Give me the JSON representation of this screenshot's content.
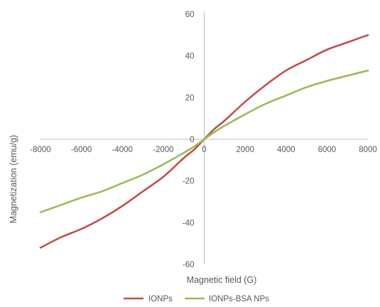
{
  "chart_data": {
    "type": "line",
    "title": "",
    "xlabel": "Magnetic field (G)",
    "ylabel": "Magnetization (emu/g)",
    "xlim": [
      -8000,
      8000
    ],
    "ylim": [
      -60,
      60
    ],
    "x_ticks": [
      -8000,
      -6000,
      -4000,
      -2000,
      0,
      2000,
      4000,
      6000,
      8000
    ],
    "y_ticks": [
      -60,
      -40,
      -20,
      0,
      20,
      40,
      60
    ],
    "grid": false,
    "legend_position": "bottom",
    "series": [
      {
        "name": "IONPs",
        "color": "#c0504d",
        "x": [
          -8000,
          -7000,
          -6000,
          -5000,
          -4000,
          -3000,
          -2000,
          -1000,
          -500,
          0,
          500,
          1000,
          2000,
          3000,
          4000,
          5000,
          6000,
          7000,
          8000
        ],
        "y": [
          -52,
          -47,
          -43,
          -38,
          -32,
          -25,
          -18,
          -9,
          -5,
          0,
          5,
          9,
          18,
          26,
          33,
          38,
          43,
          46.5,
          50
        ]
      },
      {
        "name": "IONPs-BSA NPs",
        "color": "#9bbb59",
        "x": [
          -8000,
          -7000,
          -6000,
          -5000,
          -4000,
          -3000,
          -2000,
          -1000,
          -500,
          0,
          500,
          1000,
          2000,
          3000,
          4000,
          5000,
          6000,
          7000,
          8000
        ],
        "y": [
          -35,
          -31.5,
          -28,
          -25,
          -21,
          -17,
          -12,
          -6.5,
          -3.5,
          0,
          3.5,
          6.5,
          12,
          17,
          21,
          25,
          28,
          30.5,
          33
        ]
      }
    ]
  }
}
